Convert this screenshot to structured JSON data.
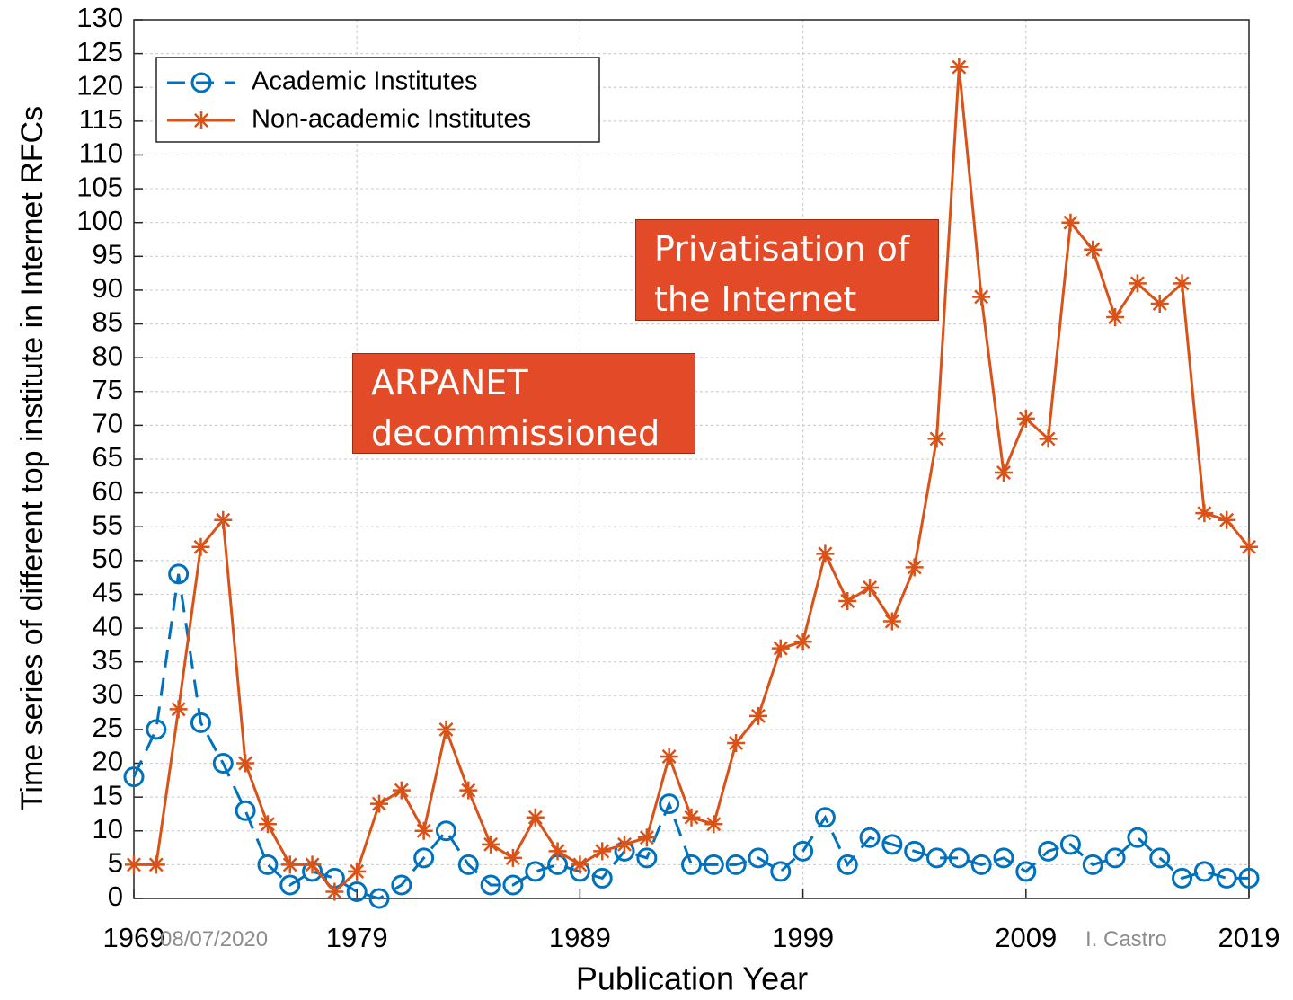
{
  "chart_data": {
    "type": "line",
    "xlabel": "Publication Year",
    "ylabel": "Time series of different top institute in Internet RFCs",
    "x": [
      1969,
      1970,
      1971,
      1972,
      1973,
      1974,
      1975,
      1976,
      1977,
      1978,
      1979,
      1980,
      1981,
      1982,
      1983,
      1984,
      1985,
      1986,
      1987,
      1988,
      1989,
      1990,
      1991,
      1992,
      1993,
      1994,
      1995,
      1996,
      1997,
      1998,
      1999,
      2000,
      2001,
      2002,
      2003,
      2004,
      2005,
      2006,
      2007,
      2008,
      2009,
      2010,
      2011,
      2012,
      2013,
      2014,
      2015,
      2016,
      2017,
      2018,
      2019
    ],
    "series": [
      {
        "name": "Academic Institutes",
        "color": "#0072BD",
        "marker": "circle",
        "linestyle": "dashed",
        "values": [
          18,
          25,
          48,
          26,
          20,
          13,
          5,
          2,
          4,
          3,
          1,
          0,
          2,
          6,
          10,
          5,
          2,
          2,
          4,
          5,
          4,
          3,
          7,
          6,
          14,
          5,
          5,
          5,
          6,
          4,
          7,
          12,
          5,
          9,
          8,
          7,
          6,
          6,
          5,
          6,
          4,
          7,
          8,
          5,
          6,
          9,
          6,
          3,
          4,
          3,
          3
        ]
      },
      {
        "name": "Non-academic Institutes",
        "color": "#D95319",
        "marker": "star",
        "linestyle": "solid",
        "values": [
          5,
          5,
          28,
          52,
          56,
          20,
          11,
          5,
          5,
          1,
          4,
          14,
          16,
          10,
          25,
          16,
          8,
          6,
          12,
          7,
          5,
          7,
          8,
          9,
          21,
          12,
          11,
          23,
          27,
          37,
          38,
          51,
          44,
          46,
          41,
          49,
          68,
          123,
          89,
          63,
          71,
          68,
          100,
          96,
          86,
          91,
          88,
          91,
          57,
          56,
          52
        ]
      }
    ],
    "xlim": [
      1969,
      2019
    ],
    "xticks": [
      1969,
      1979,
      1989,
      1999,
      2009,
      2019
    ],
    "ylim": [
      0,
      130
    ],
    "yticks": [
      0,
      5,
      10,
      15,
      20,
      25,
      30,
      35,
      40,
      45,
      50,
      55,
      60,
      65,
      70,
      75,
      80,
      85,
      90,
      95,
      100,
      105,
      110,
      115,
      120,
      125,
      130
    ],
    "grid": true,
    "legend": "upper left",
    "annotations": [
      {
        "text": "ARPANET decommissioned"
      },
      {
        "text": "Privatisation of the Internet"
      }
    ]
  },
  "footer": {
    "date": "08/07/2020",
    "author": "I. Castro"
  }
}
